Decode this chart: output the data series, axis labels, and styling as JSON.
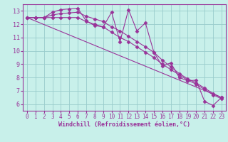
{
  "bg_color": "#c8f0ea",
  "grid_color": "#99cccc",
  "line_color": "#993399",
  "spine_color": "#993399",
  "xlabel": "Windchill (Refroidissement éolien,°C)",
  "xlim": [
    -0.5,
    23.5
  ],
  "ylim": [
    5.5,
    13.5
  ],
  "yticks": [
    6,
    7,
    8,
    9,
    10,
    11,
    12,
    13
  ],
  "xticks": [
    0,
    1,
    2,
    3,
    4,
    5,
    6,
    7,
    8,
    9,
    10,
    11,
    12,
    13,
    14,
    15,
    16,
    17,
    18,
    19,
    20,
    21,
    22,
    23
  ],
  "series1_x": [
    0,
    1,
    2,
    3,
    4,
    5,
    6,
    7,
    8,
    9,
    10,
    11,
    12,
    13,
    14,
    15,
    16,
    17,
    18,
    19,
    20,
    21,
    22,
    23
  ],
  "series1_y": [
    12.5,
    12.5,
    12.5,
    12.9,
    13.1,
    13.15,
    13.2,
    12.25,
    11.9,
    11.8,
    12.9,
    10.7,
    13.1,
    11.5,
    12.1,
    9.9,
    8.85,
    9.1,
    8.0,
    7.75,
    7.8,
    6.2,
    5.9,
    6.5
  ],
  "series2_x": [
    0,
    1,
    2,
    3,
    4,
    5,
    6,
    7,
    8,
    9,
    10,
    11,
    12,
    13,
    14,
    15,
    16,
    17,
    18,
    19,
    20,
    21,
    22,
    23
  ],
  "series2_y": [
    12.5,
    12.5,
    12.5,
    12.7,
    12.8,
    12.85,
    12.9,
    12.6,
    12.4,
    12.2,
    11.8,
    11.5,
    11.1,
    10.7,
    10.3,
    9.9,
    9.3,
    8.8,
    8.3,
    7.9,
    7.6,
    7.2,
    6.8,
    6.5
  ],
  "series3_x": [
    0,
    1,
    2,
    3,
    4,
    5,
    6,
    7,
    8,
    9,
    10,
    11,
    12,
    13,
    14,
    15,
    16,
    17,
    18,
    19,
    20,
    21,
    22,
    23
  ],
  "series3_y": [
    12.5,
    12.5,
    12.5,
    12.5,
    12.5,
    12.5,
    12.5,
    12.2,
    12.0,
    11.8,
    11.4,
    11.0,
    10.7,
    10.3,
    9.9,
    9.5,
    9.0,
    8.6,
    8.2,
    7.8,
    7.5,
    7.1,
    6.7,
    6.4
  ],
  "series4_x": [
    0,
    23
  ],
  "series4_y": [
    12.5,
    6.5
  ]
}
